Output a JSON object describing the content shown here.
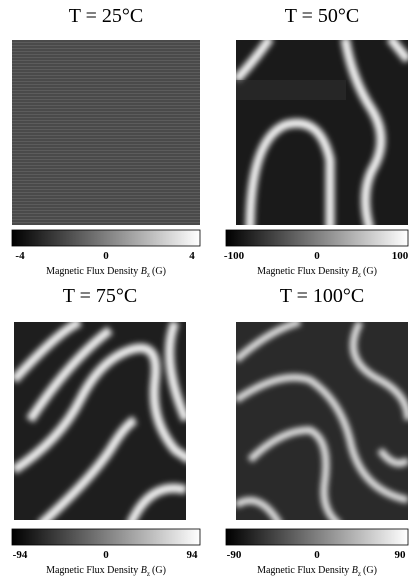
{
  "panels": [
    {
      "title": "T = 25°C",
      "colorbar_ticks": [
        "-4",
        "0",
        "4"
      ],
      "colorbar_label": [
        "Magnetic Flux Density",
        "B",
        "z",
        "(G)"
      ]
    },
    {
      "title": "T = 50°C",
      "colorbar_ticks": [
        "-100",
        "0",
        "100"
      ],
      "colorbar_label": [
        "Magnetic Flux Density",
        "B",
        "z",
        "(G)"
      ]
    },
    {
      "title": "T = 75°C",
      "colorbar_ticks": [
        "-94",
        "0",
        "94"
      ],
      "colorbar_label": [
        "Magnetic Flux Density",
        "B",
        "z",
        "(G)"
      ]
    },
    {
      "title": "T = 100°C",
      "colorbar_ticks": [
        "-90",
        "0",
        "90"
      ],
      "colorbar_label": [
        "Magnetic Flux Density",
        "B",
        "z",
        "(G)"
      ]
    }
  ]
}
